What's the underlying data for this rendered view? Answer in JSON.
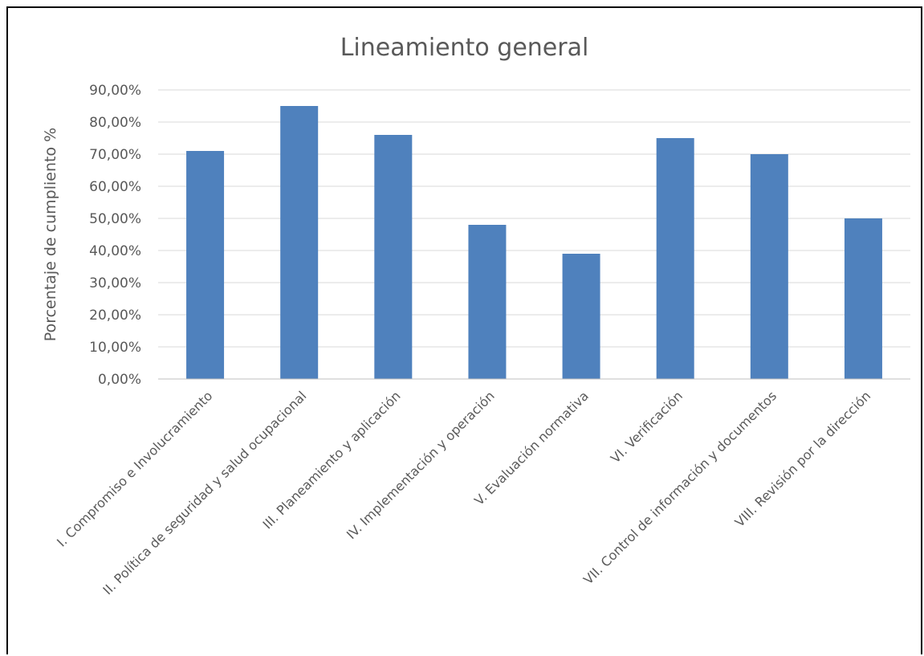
{
  "chart_data": {
    "type": "bar",
    "title": "Lineamiento general",
    "xlabel": "",
    "ylabel": "Porcentaje de cumpliento %",
    "ylim": [
      0,
      90
    ],
    "yticks": [
      "0,00%",
      "10,00%",
      "20,00%",
      "30,00%",
      "40,00%",
      "50,00%",
      "60,00%",
      "70,00%",
      "80,00%",
      "90,00%"
    ],
    "grid": true,
    "bar_color": "#4f81bd",
    "categories": [
      "I. Compromiso e Involucramiento",
      "II. Política de seguridad y salud ocupacional",
      "III. Planeamiento y aplicación",
      "IV. Implementación y operación",
      "V. Evaluación normativa",
      "VI. Verificación",
      "VII. Control de información y documentos",
      "VIII. Revisión por la dirección"
    ],
    "values": [
      71,
      85,
      76,
      48,
      39,
      75,
      70,
      50
    ]
  }
}
